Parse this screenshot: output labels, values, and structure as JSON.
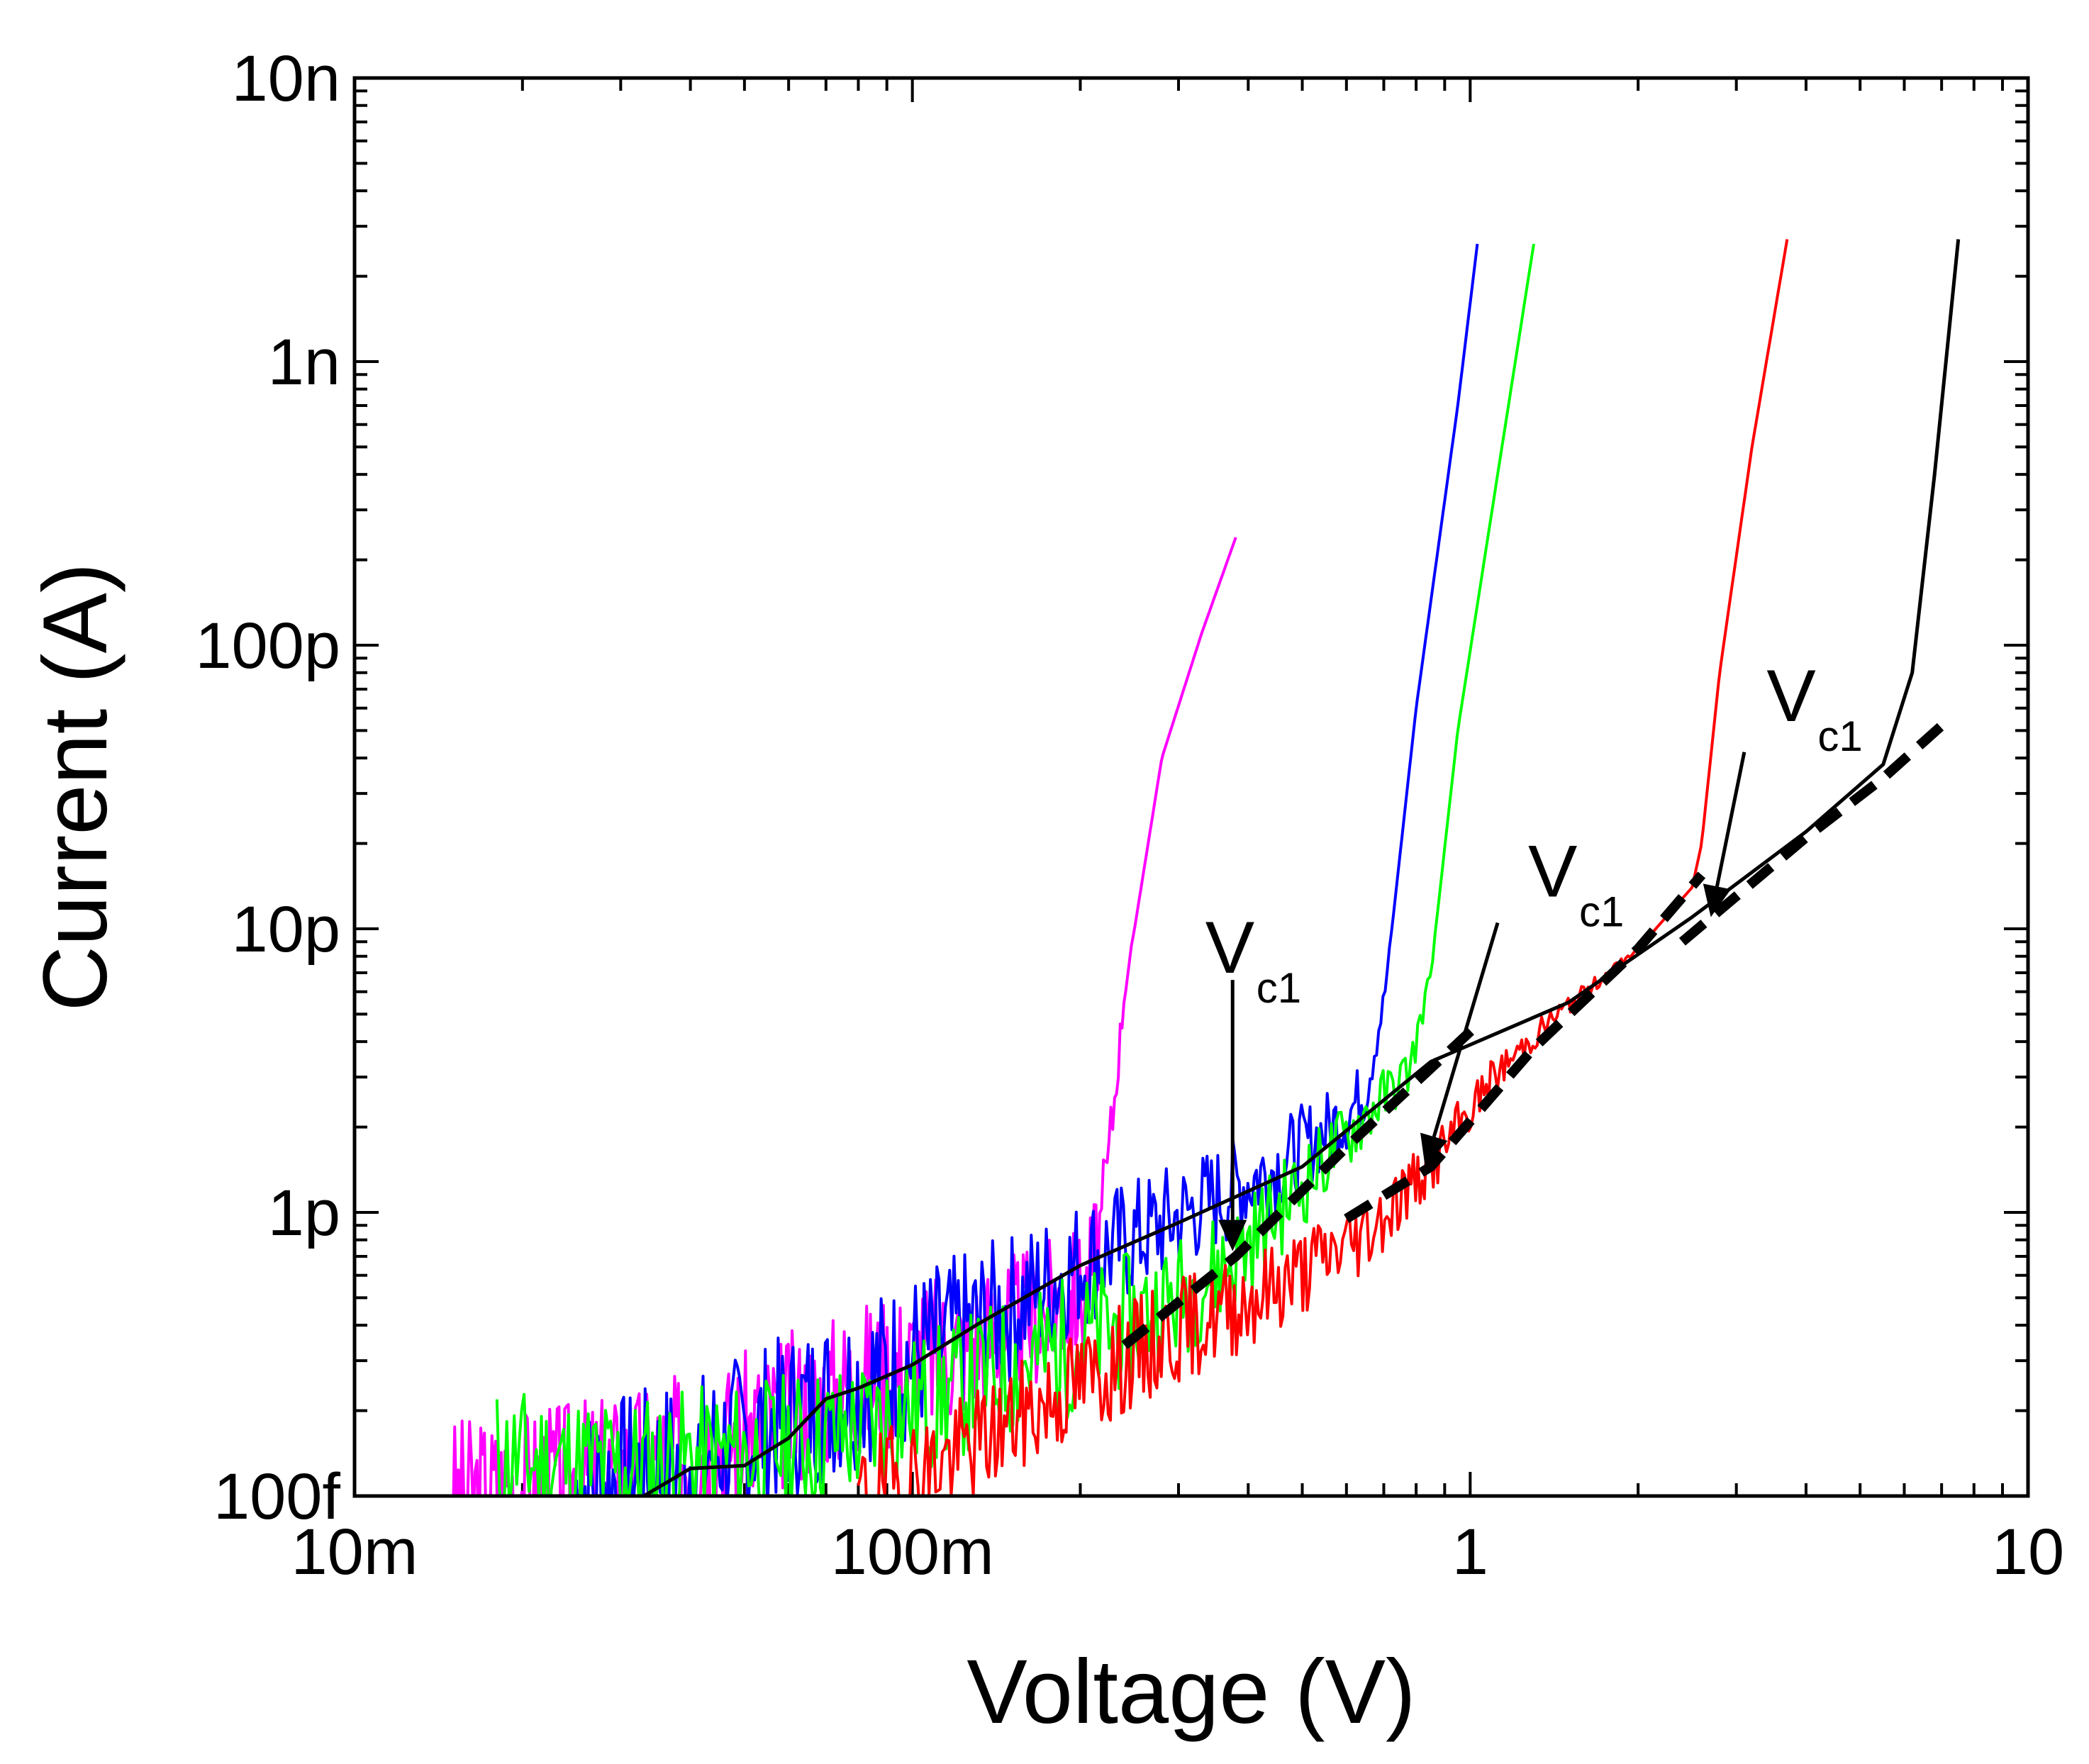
{
  "chart_data": {
    "type": "line",
    "xscale": "log",
    "yscale": "log",
    "xlabel": "Voltage (V)",
    "ylabel": "Current (A)",
    "xlim": [
      0.01,
      10
    ],
    "ylim": [
      1e-13,
      1e-08
    ],
    "xticks": [
      {
        "value": 0.01,
        "label": "10m"
      },
      {
        "value": 0.1,
        "label": "100m"
      },
      {
        "value": 1,
        "label": "1"
      },
      {
        "value": 10,
        "label": "10"
      }
    ],
    "yticks": [
      {
        "value": 1e-13,
        "label": "100f"
      },
      {
        "value": 1e-12,
        "label": "1p"
      },
      {
        "value": 1e-11,
        "label": "10p"
      },
      {
        "value": 1e-10,
        "label": "100p"
      },
      {
        "value": 1e-09,
        "label": "1n"
      },
      {
        "value": 1e-08,
        "label": "10n"
      }
    ],
    "series": [
      {
        "name": "magenta",
        "color": "#ff00ff",
        "noise": 0.28,
        "seed": 3,
        "points": [
          [
            0.015,
            1e-13
          ],
          [
            0.03,
            1.25e-13
          ],
          [
            0.05,
            1.7e-13
          ],
          [
            0.08,
            2.6e-13
          ],
          [
            0.12,
            3.4e-13
          ],
          [
            0.16,
            4.2e-13
          ],
          [
            0.205,
            5.3e-13
          ],
          [
            0.22,
            1e-12
          ],
          [
            0.24,
            6e-12
          ],
          [
            0.28,
            4e-11
          ],
          [
            0.33,
            1.1e-10
          ],
          [
            0.38,
            2.4e-10
          ]
        ]
      },
      {
        "name": "blue",
        "color": "#0000ff",
        "noise": 0.3,
        "seed": 7,
        "points": [
          [
            0.025,
            1.05e-13
          ],
          [
            0.04,
            1.35e-13
          ],
          [
            0.06,
            1.9e-13
          ],
          [
            0.1,
            3.1e-13
          ],
          [
            0.15,
            4.6e-13
          ],
          [
            0.2,
            6.6e-13
          ],
          [
            0.3,
            9.6e-13
          ],
          [
            0.45,
            1.45e-12
          ],
          [
            0.6,
            2.2e-12
          ],
          [
            0.65,
            2.7e-12
          ],
          [
            0.7,
            5.5e-12
          ],
          [
            0.8,
            6e-11
          ],
          [
            0.95,
            7e-10
          ],
          [
            1.03,
            2.6e-09
          ]
        ]
      },
      {
        "name": "green",
        "color": "#00ff00",
        "noise": 0.26,
        "seed": 11,
        "points": [
          [
            0.018,
            1.35e-13
          ],
          [
            0.03,
            1.25e-13
          ],
          [
            0.05,
            1.4e-13
          ],
          [
            0.08,
            1.7e-13
          ],
          [
            0.12,
            2.4e-13
          ],
          [
            0.2,
            3.5e-13
          ],
          [
            0.3,
            5e-13
          ],
          [
            0.38,
            7e-13
          ],
          [
            0.5,
            1.25e-12
          ],
          [
            0.65,
            2.2e-12
          ],
          [
            0.78,
            3.2e-12
          ],
          [
            0.85,
            7e-12
          ],
          [
            0.95,
            5e-11
          ],
          [
            1.12,
            4e-10
          ],
          [
            1.3,
            2.6e-09
          ]
        ]
      },
      {
        "name": "red",
        "color": "#ff0000",
        "noise": 0.2,
        "seed": 19,
        "points": [
          [
            0.08,
            1e-13
          ],
          [
            0.12,
            1.4e-13
          ],
          [
            0.2,
            2.5e-13
          ],
          [
            0.3,
            3.8e-13
          ],
          [
            0.45,
            5.5e-13
          ],
          [
            0.65,
            8.5e-13
          ],
          [
            0.8,
            1.3e-12
          ],
          [
            0.9,
            1.7e-12
          ],
          [
            1.1,
            3e-12
          ],
          [
            1.4,
            4.8e-12
          ],
          [
            2.0,
            8.5e-12
          ],
          [
            2.5,
            1.4e-11
          ],
          [
            2.6,
            2e-11
          ],
          [
            2.8,
            8e-11
          ],
          [
            3.2,
            5e-10
          ],
          [
            3.7,
            2.7e-09
          ]
        ]
      },
      {
        "name": "black",
        "color": "#000000",
        "noise": 0,
        "seed": 0,
        "points": [
          [
            0.033,
            1e-13
          ],
          [
            0.04,
            1.25e-13
          ],
          [
            0.05,
            1.28e-13
          ],
          [
            0.06,
            1.6e-13
          ],
          [
            0.07,
            2.2e-13
          ],
          [
            0.08,
            2.4e-13
          ],
          [
            0.1,
            2.9e-13
          ],
          [
            0.13,
            4e-13
          ],
          [
            0.2,
            6.5e-13
          ],
          [
            0.3,
            9.2e-13
          ],
          [
            0.5,
            1.45e-12
          ],
          [
            0.85,
            3.4e-12
          ],
          [
            1.5,
            5.5e-12
          ],
          [
            2.5,
            1.1e-11
          ],
          [
            4.0,
            2.2e-11
          ],
          [
            5.5,
            3.8e-11
          ],
          [
            6.2,
            8e-11
          ],
          [
            6.8,
            4e-10
          ],
          [
            7.5,
            2.7e-09
          ]
        ]
      }
    ],
    "fits": [
      {
        "style": "dashed",
        "color": "#000000",
        "points": [
          [
            0.24,
            3.4e-13
          ],
          [
            0.38,
            7e-13
          ],
          [
            0.6,
            1.7e-12
          ],
          [
            1.02,
            4.5e-12
          ]
        ]
      },
      {
        "style": "dashed",
        "color": "#000000",
        "points": [
          [
            0.6,
            9.5e-13
          ],
          [
            0.85,
            1.45e-12
          ],
          [
            1.3,
            3.8e-12
          ],
          [
            2.0,
            8.5e-12
          ],
          [
            2.6,
            1.55e-11
          ]
        ]
      },
      {
        "style": "dashed",
        "color": "#000000",
        "points": [
          [
            2.4,
            9e-12
          ],
          [
            4.0,
            2.1e-11
          ],
          [
            5.5,
            3.4e-11
          ],
          [
            7.0,
            5.2e-11
          ]
        ]
      }
    ],
    "annotations": [
      {
        "text": "V",
        "subscript": "c1",
        "label_at": [
          0.335,
          7e-12
        ],
        "arrow_from": [
          0.375,
          6.6e-12
        ],
        "arrow_to": [
          0.375,
          7.3e-13
        ]
      },
      {
        "text": "V",
        "subscript": "c1",
        "label_at": [
          1.27,
          1.3e-11
        ],
        "arrow_from": [
          1.12,
          1.05e-11
        ],
        "arrow_to": [
          0.83,
          1.45e-12
        ]
      },
      {
        "text": "V",
        "subscript": "c1",
        "label_at": [
          3.4,
          5.4e-11
        ],
        "arrow_from": [
          3.1,
          4.2e-11
        ],
        "arrow_to": [
          2.7,
          1.1e-11
        ]
      }
    ]
  }
}
